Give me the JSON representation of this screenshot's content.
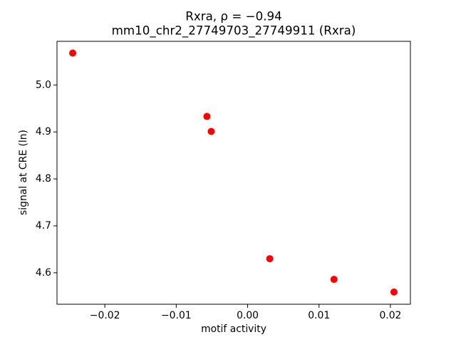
{
  "chart_data": {
    "type": "scatter",
    "title": "Rxra, ρ = −0.94",
    "subtitle": "mm10_chr2_27749703_27749911 (Rxra)",
    "x_label": "motif activity",
    "y_label": "signal at CRE (ln)",
    "color": "#ff0000",
    "x": [
      -0.0245,
      -0.0057,
      -0.0051,
      0.0031,
      0.0121,
      0.0205
    ],
    "values": [
      5.068,
      4.933,
      4.901,
      4.63,
      4.586,
      4.559
    ],
    "xlim": [
      -0.0267,
      0.0228
    ],
    "ylim": [
      4.533,
      5.093
    ],
    "xticks": [
      {
        "value": -0.02,
        "label": "−0.02"
      },
      {
        "value": -0.01,
        "label": "−0.01"
      },
      {
        "value": 0,
        "label": "0.00"
      },
      0.01,
      0.02
    ],
    "yticks": [
      4.6,
      4.7,
      4.8,
      4.9,
      {
        "value": 5,
        "label": "5.0"
      }
    ]
  }
}
